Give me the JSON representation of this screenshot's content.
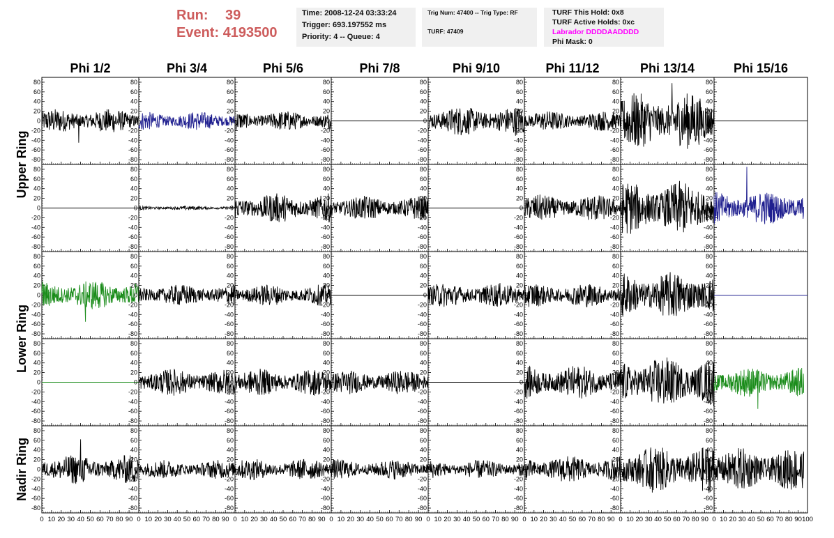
{
  "header": {
    "run_label": "Run:",
    "run_value": "39",
    "event_label": "Event:",
    "event_value": "4193500"
  },
  "info_time": {
    "time": "Time: 2008-12-24 03:33:24",
    "trigger": "Trigger: 693.197552 ms",
    "priority": "Priority: 4 -- Queue: 4"
  },
  "info_trig": {
    "line1": "Trig Num: 47400 -- Trig Type: RF",
    "line2": "TURF: 47409"
  },
  "info_turf": {
    "this_hold": "TURF This Hold: 0x8",
    "active_holds": "TURF Active Holds: 0xc",
    "labrador": "Labrador DDDDAADDDD",
    "phi_mask": "Phi Mask: 0"
  },
  "colors": {
    "run_text": "#cd5c5c",
    "labrador_text": "#ff00ff",
    "trace_black": "#000000",
    "trace_blue": "#1f1f8f",
    "trace_green": "#1a8c1a"
  },
  "chart_data": {
    "type": "line",
    "column_headers": [
      "Phi 1/2",
      "Phi 3/4",
      "Phi 5/6",
      "Phi 7/8",
      "Phi 9/10",
      "Phi 11/12",
      "Phi 13/14",
      "Phi 15/16"
    ],
    "row_labels": [
      "Upper Ring",
      "Lower Ring",
      "Nadir Ring"
    ],
    "xlim": [
      0,
      100
    ],
    "ylim": [
      -90,
      90
    ],
    "x_ticks": [
      0,
      10,
      20,
      30,
      40,
      50,
      60,
      70,
      80,
      90,
      100
    ],
    "y_ticks": [
      -80,
      -60,
      -40,
      -20,
      0,
      20,
      40,
      60,
      80
    ],
    "x_tick_labels": [
      "0",
      "10",
      "20",
      "30",
      "40",
      "50",
      "60",
      "70",
      "80",
      "90",
      "100"
    ],
    "y_tick_labels": [
      "-80",
      "-60",
      "-40",
      "-20",
      "0",
      "20",
      "40",
      "60",
      "80"
    ],
    "panels": [
      [
        {
          "amp": 18,
          "color": "black",
          "baseline": 0,
          "spike": [
            38,
            -45
          ]
        },
        {
          "amp": 14,
          "color": "blue",
          "baseline": 0
        },
        {
          "amp": 15,
          "color": "black",
          "baseline": 0
        },
        {
          "amp": 0,
          "color": "black",
          "baseline": 0
        },
        {
          "amp": 22,
          "color": "black",
          "baseline": 0
        },
        {
          "amp": 15,
          "color": "black",
          "baseline": 0
        },
        {
          "amp": 42,
          "color": "black",
          "baseline": 0,
          "spike": [
            55,
            78
          ]
        },
        {
          "amp": 0,
          "color": "black",
          "baseline": 0
        }
      ],
      [
        {
          "amp": 0,
          "color": "black",
          "baseline": 0
        },
        {
          "amp": 3,
          "color": "black",
          "baseline": 0
        },
        {
          "amp": 22,
          "color": "black",
          "baseline": 0
        },
        {
          "amp": 18,
          "color": "black",
          "baseline": 0
        },
        {
          "amp": 0,
          "color": "black",
          "baseline": 0
        },
        {
          "amp": 20,
          "color": "black",
          "baseline": 0
        },
        {
          "amp": 40,
          "color": "black",
          "baseline": 0
        },
        {
          "amp": 25,
          "color": "blue",
          "baseline": 0,
          "spike": [
            35,
            85
          ]
        }
      ],
      [
        {
          "amp": 22,
          "color": "green",
          "baseline": 0,
          "spike": [
            45,
            -55
          ]
        },
        {
          "amp": 16,
          "color": "black",
          "baseline": 0
        },
        {
          "amp": 16,
          "color": "black",
          "baseline": 0
        },
        {
          "amp": 0,
          "color": "black",
          "baseline": 0
        },
        {
          "amp": 18,
          "color": "black",
          "baseline": 0
        },
        {
          "amp": 18,
          "color": "black",
          "baseline": 0
        },
        {
          "amp": 35,
          "color": "black",
          "baseline": 0
        },
        {
          "amp": 0,
          "color": "blue",
          "baseline": 0
        }
      ],
      [
        {
          "amp": 0,
          "color": "green",
          "baseline": 0
        },
        {
          "amp": 20,
          "color": "black",
          "baseline": 0
        },
        {
          "amp": 20,
          "color": "black",
          "baseline": 0
        },
        {
          "amp": 18,
          "color": "black",
          "baseline": 0
        },
        {
          "amp": 0,
          "color": "black",
          "baseline": 0
        },
        {
          "amp": 25,
          "color": "black",
          "baseline": 0
        },
        {
          "amp": 38,
          "color": "black",
          "baseline": 0
        },
        {
          "amp": 22,
          "color": "green",
          "baseline": 0,
          "spike": [
            47,
            -55
          ]
        }
      ],
      [
        {
          "amp": 22,
          "color": "black",
          "baseline": 0,
          "spike": [
            40,
            62
          ]
        },
        {
          "amp": 14,
          "color": "black",
          "baseline": 0
        },
        {
          "amp": 16,
          "color": "black",
          "baseline": 0
        },
        {
          "amp": 15,
          "color": "black",
          "baseline": 0
        },
        {
          "amp": 14,
          "color": "black",
          "baseline": 0
        },
        {
          "amp": 20,
          "color": "black",
          "baseline": 0
        },
        {
          "amp": 35,
          "color": "black",
          "baseline": 0
        },
        {
          "amp": 32,
          "color": "black",
          "baseline": 0
        }
      ]
    ]
  }
}
